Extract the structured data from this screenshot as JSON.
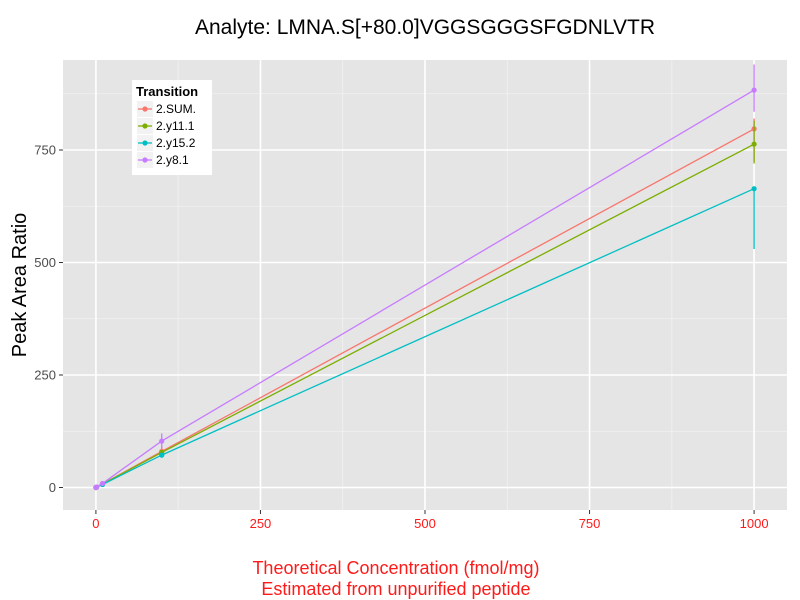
{
  "chart_data": {
    "type": "line",
    "title": "Analyte: LMNA.S[+80.0]VGGSGGGSFGDNLVTR",
    "xlabel_line1": "Theoretical Concentration (fmol/mg)",
    "xlabel_line2": "Estimated from unpurified peptide",
    "ylabel": "Peak Area Ratio",
    "xlim": [
      -50,
      1050
    ],
    "ylim": [
      -50,
      950
    ],
    "x_ticks": [
      0,
      250,
      500,
      750,
      1000
    ],
    "x_tick_labels": [
      "0",
      "250",
      "500",
      "750",
      "1000"
    ],
    "y_ticks": [
      0,
      250,
      500,
      750
    ],
    "y_tick_labels": [
      "0",
      "250",
      "500",
      "750"
    ],
    "x_minor_ticks": [
      125,
      375,
      625,
      875
    ],
    "y_minor_ticks": [
      125,
      375,
      625,
      875
    ],
    "grid": true,
    "legend_title": "Transition",
    "legend_position": "top-left",
    "series": [
      {
        "name": "2.SUM.",
        "color": "#F8766D",
        "x": [
          0,
          1,
          10,
          100,
          1000
        ],
        "y": [
          0,
          0.8,
          8,
          80,
          797
        ],
        "err_low": [
          null,
          null,
          null,
          68,
          725
        ],
        "err_high": [
          null,
          null,
          null,
          92,
          820
        ]
      },
      {
        "name": "2.y11.1",
        "color": "#7CAE00",
        "x": [
          0,
          1,
          10,
          100,
          1000
        ],
        "y": [
          0,
          0.8,
          7.6,
          78,
          763
        ],
        "err_low": [
          null,
          null,
          null,
          null,
          720
        ],
        "err_high": [
          null,
          null,
          null,
          null,
          815
        ]
      },
      {
        "name": "2.y15.2",
        "color": "#00BFC4",
        "x": [
          0,
          1,
          10,
          100,
          1000
        ],
        "y": [
          0,
          0.7,
          6.6,
          72,
          664
        ],
        "err_low": [
          null,
          null,
          null,
          null,
          530
        ],
        "err_high": [
          null,
          null,
          null,
          null,
          664
        ]
      },
      {
        "name": "2.y8.1",
        "color": "#C77CFF",
        "x": [
          0,
          1,
          10,
          100,
          1000
        ],
        "y": [
          0,
          0.9,
          9,
          103,
          883
        ],
        "err_low": [
          null,
          null,
          null,
          88,
          835
        ],
        "err_high": [
          null,
          null,
          null,
          120,
          940
        ]
      }
    ]
  }
}
